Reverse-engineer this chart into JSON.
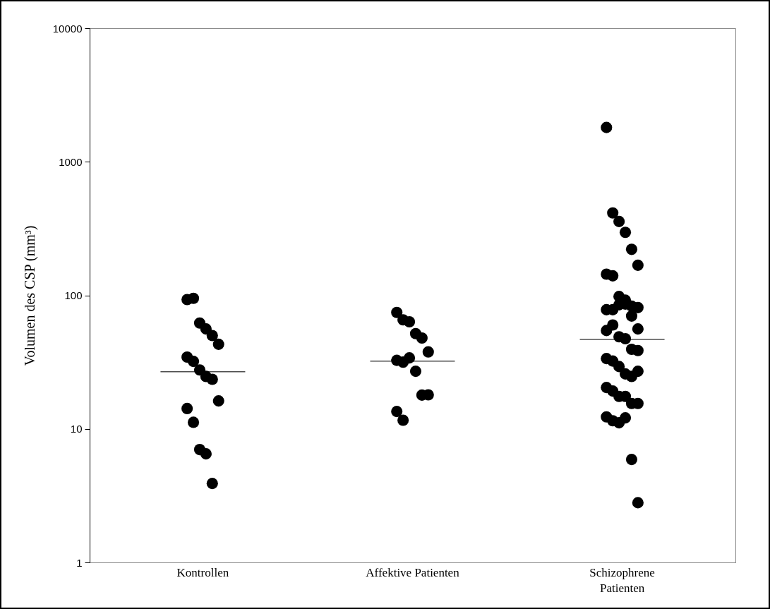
{
  "chart_data": {
    "type": "scatter",
    "ylabel": "Volumen des CSP (mm³)",
    "categories": [
      "Kontrollen",
      "Affektive Patienten",
      "Schizophrene Patienten"
    ],
    "log": true,
    "ylim": [
      1,
      10000
    ],
    "yticks": [
      1,
      10,
      100,
      1000,
      10000
    ],
    "grid": false,
    "marker": "circle",
    "series": [
      {
        "color": "#000000",
        "x": [
          "Kontrollen",
          "Kontrollen",
          "Kontrollen",
          "Kontrollen",
          "Kontrollen",
          "Kontrollen",
          "Kontrollen",
          "Kontrollen",
          "Kontrollen",
          "Kontrollen",
          "Kontrollen",
          "Kontrollen",
          "Kontrollen",
          "Kontrollen",
          "Kontrollen",
          "Kontrollen",
          "Kontrollen",
          "Affektive Patienten",
          "Affektive Patienten",
          "Affektive Patienten",
          "Affektive Patienten",
          "Affektive Patienten",
          "Affektive Patienten",
          "Affektive Patienten",
          "Affektive Patienten",
          "Affektive Patienten",
          "Affektive Patienten",
          "Affektive Patienten",
          "Affektive Patienten",
          "Affektive Patienten",
          "Affektive Patienten",
          "Schizophrene Patienten",
          "Schizophrene Patienten",
          "Schizophrene Patienten",
          "Schizophrene Patienten",
          "Schizophrene Patienten",
          "Schizophrene Patienten",
          "Schizophrene Patienten",
          "Schizophrene Patienten",
          "Schizophrene Patienten",
          "Schizophrene Patienten",
          "Schizophrene Patienten",
          "Schizophrene Patienten",
          "Schizophrene Patienten",
          "Schizophrene Patienten",
          "Schizophrene Patienten",
          "Schizophrene Patienten",
          "Schizophrene Patienten",
          "Schizophrene Patienten",
          "Schizophrene Patienten",
          "Schizophrene Patienten",
          "Schizophrene Patienten",
          "Schizophrene Patienten",
          "Schizophrene Patienten",
          "Schizophrene Patienten",
          "Schizophrene Patienten",
          "Schizophrene Patienten",
          "Schizophrene Patienten",
          "Schizophrene Patienten",
          "Schizophrene Patienten",
          "Schizophrene Patienten",
          "Schizophrene Patienten",
          "Schizophrene Patienten",
          "Schizophrene Patienten",
          "Schizophrene Patienten",
          "Schizophrene Patienten",
          "Schizophrene Patienten",
          "Schizophrene Patienten",
          "Schizophrene Patienten",
          "Schizophrene Patienten",
          "Schizophrene Patienten",
          "Schizophrene Patienten",
          "Schizophrene Patienten"
        ],
        "values": [
          93,
          95,
          62,
          56,
          50,
          43,
          34.5,
          32,
          27.6,
          24.7,
          23.5,
          16.2,
          14.2,
          11.2,
          7.0,
          6.5,
          3.9,
          74.5,
          65.5,
          63.4,
          51.7,
          47.9,
          37.7,
          32.6,
          31.6,
          34,
          27,
          17.9,
          18,
          13.5,
          11.6,
          1806,
          414,
          357,
          296,
          221,
          168,
          144,
          140,
          98,
          86,
          83,
          81,
          78,
          78,
          85,
          92,
          70,
          56,
          54.5,
          60,
          48.9,
          47.3,
          39.4,
          38.6,
          33.6,
          32.2,
          29.3,
          25.8,
          24.7,
          27.0,
          20.4,
          19.2,
          17.5,
          17.5,
          15.5,
          15.5,
          12.3,
          11.5,
          11.1,
          12.1,
          5.9,
          2.8
        ]
      }
    ],
    "ref_lines": [
      {
        "axis": "y",
        "value": 26.8,
        "color": "#000000"
      },
      {
        "axis": "y",
        "value": 32.2,
        "color": "#000000"
      },
      {
        "axis": "y",
        "value": 46.8,
        "color": "#000000"
      }
    ]
  }
}
